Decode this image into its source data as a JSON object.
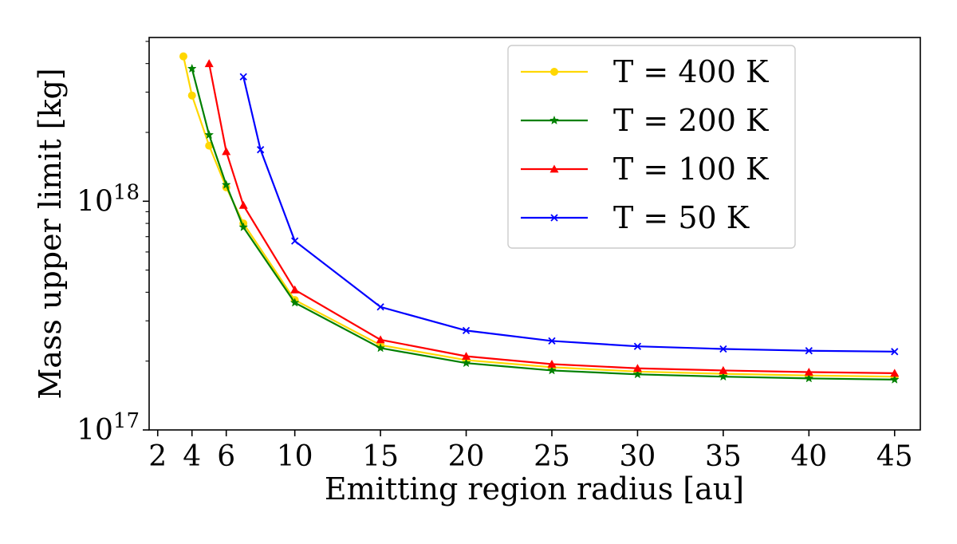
{
  "chart_data": {
    "type": "line",
    "xlabel": "Emitting region radius [au]",
    "ylabel": "Mass upper limit [kg]",
    "xlim": [
      1.5,
      46.5
    ],
    "ylim": [
      1e+17,
      5.2e+18
    ],
    "yscale": "log",
    "grid": false,
    "legend_position": "top-right",
    "x_ticks": [
      2,
      4,
      6,
      10,
      15,
      20,
      25,
      30,
      35,
      40,
      45
    ],
    "x_tick_labels": [
      "2",
      "4",
      "6",
      "10",
      "15",
      "20",
      "25",
      "30",
      "35",
      "40",
      "45"
    ],
    "y_ticks": [
      {
        "value": 1e+17,
        "base": "10",
        "exp": "17"
      },
      {
        "value": 1e+18,
        "base": "10",
        "exp": "18"
      }
    ],
    "series": [
      {
        "name": "T = 400 K",
        "color": "#FFD700",
        "marker": "circle",
        "x": [
          3.5,
          4,
          5,
          6,
          7,
          10,
          15,
          20,
          25,
          30,
          35,
          40,
          45
        ],
        "y": [
          4.3e+18,
          2.9e+18,
          1.75e+18,
          1.15e+18,
          8e+17,
          3.7e+17,
          2.35e+17,
          2.02e+17,
          1.88e+17,
          1.8e+17,
          1.76e+17,
          1.73e+17,
          1.71e+17
        ]
      },
      {
        "name": "T = 200 K",
        "color": "#008000",
        "marker": "star",
        "x": [
          4,
          5,
          6,
          7,
          10,
          15,
          20,
          25,
          30,
          35,
          40,
          45
        ],
        "y": [
          3.8e+18,
          1.95e+18,
          1.18e+18,
          7.7e+17,
          3.6e+17,
          2.28e+17,
          1.96e+17,
          1.82e+17,
          1.75e+17,
          1.71e+17,
          1.68e+17,
          1.66e+17
        ]
      },
      {
        "name": "T = 100 K",
        "color": "#FF0000",
        "marker": "triangle",
        "x": [
          5,
          6,
          7,
          10,
          15,
          20,
          25,
          30,
          35,
          40,
          45
        ],
        "y": [
          4e+18,
          1.65e+18,
          9.6e+17,
          4.1e+17,
          2.48e+17,
          2.1e+17,
          1.94e+17,
          1.86e+17,
          1.82e+17,
          1.79e+17,
          1.77e+17
        ]
      },
      {
        "name": "T = 50 K",
        "color": "#0000FF",
        "marker": "x",
        "x": [
          7,
          8,
          10,
          15,
          20,
          25,
          30,
          35,
          40,
          45
        ],
        "y": [
          3.5e+18,
          1.68e+18,
          6.7e+17,
          3.45e+17,
          2.72e+17,
          2.45e+17,
          2.32e+17,
          2.26e+17,
          2.22e+17,
          2.2e+17
        ]
      }
    ]
  }
}
